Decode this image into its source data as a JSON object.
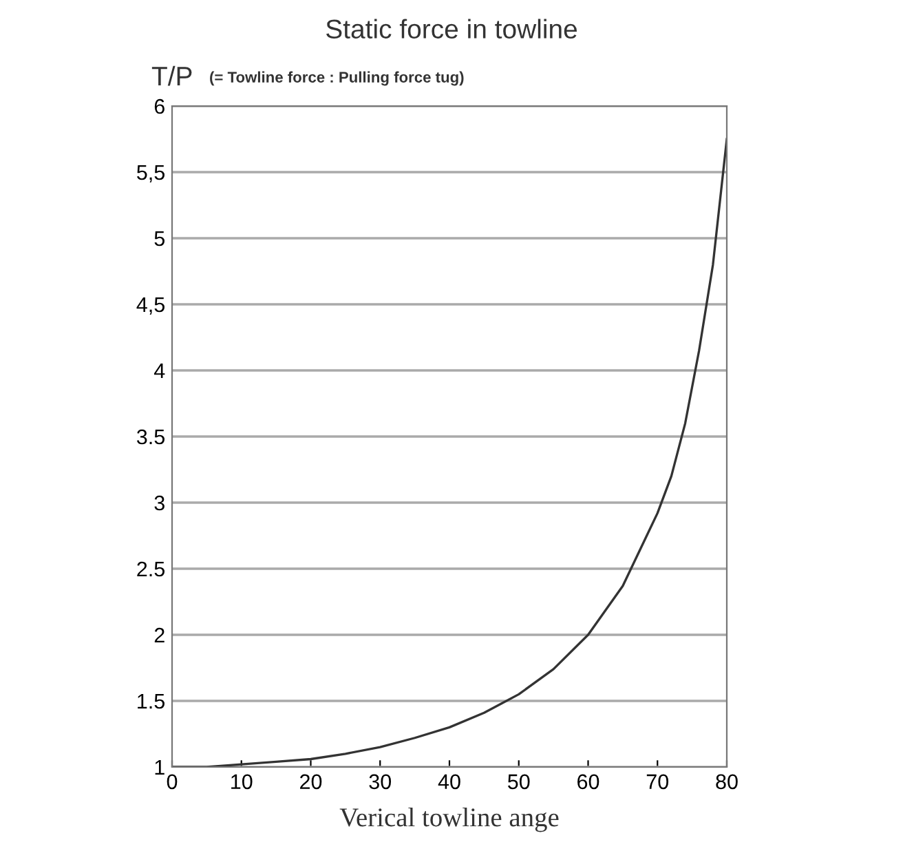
{
  "chart_data": {
    "type": "line",
    "title": "Static force in towline",
    "ylabel": "T/P",
    "xlabel": "Verical towline ange",
    "annotations": [
      "(= Towline force : Pulling force tug)"
    ],
    "x": [
      0,
      5,
      10,
      15,
      20,
      25,
      30,
      35,
      40,
      45,
      50,
      55,
      60,
      65,
      70,
      72,
      74,
      76,
      78,
      80
    ],
    "series": [
      {
        "color": "#333333",
        "values": [
          1.0,
          1.0,
          1.02,
          1.04,
          1.06,
          1.1,
          1.15,
          1.22,
          1.3,
          1.41,
          1.55,
          1.74,
          2.0,
          2.37,
          2.92,
          3.2,
          3.6,
          4.15,
          4.8,
          5.75
        ]
      }
    ],
    "xlim": [
      0,
      80
    ],
    "xticks": [
      0,
      10,
      20,
      30,
      40,
      50,
      60,
      70,
      80
    ],
    "ylim": [
      1,
      6
    ],
    "yticks": [
      1,
      {
        "value": 1.5,
        "label": "1.5"
      },
      2,
      {
        "value": 2.5,
        "label": "2.5"
      },
      3,
      {
        "value": 3.5,
        "label": "3.5"
      },
      4,
      {
        "value": 4.5,
        "label": "4,5"
      },
      5,
      {
        "value": 5.5,
        "label": "5,5"
      },
      6
    ],
    "grid": "y",
    "line_style": "solid"
  }
}
